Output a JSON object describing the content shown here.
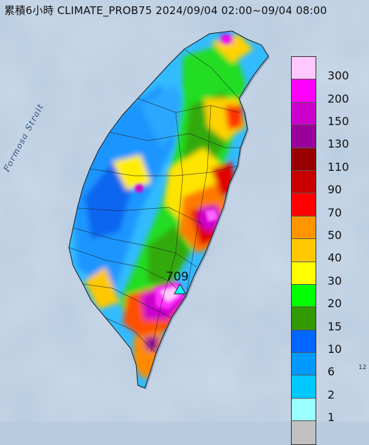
{
  "title": "累積6小時 CLIMATE_PROB75 2024/09/04 02:00~09/04 08:00",
  "strait_label": "Formosa Strait",
  "peak_value": "709",
  "edge_label": "12",
  "legend": [
    {
      "label": "300",
      "color": "#ffc8ff"
    },
    {
      "label": "200",
      "color": "#ff00ff"
    },
    {
      "label": "150",
      "color": "#cc00cc"
    },
    {
      "label": "130",
      "color": "#990099"
    },
    {
      "label": "110",
      "color": "#960000"
    },
    {
      "label": "90",
      "color": "#c80000"
    },
    {
      "label": "70",
      "color": "#ff0000"
    },
    {
      "label": "50",
      "color": "#ff9600"
    },
    {
      "label": "40",
      "color": "#ffc800"
    },
    {
      "label": "30",
      "color": "#ffff00"
    },
    {
      "label": "20",
      "color": "#00ff00"
    },
    {
      "label": "15",
      "color": "#339900"
    },
    {
      "label": "10",
      "color": "#0066ff"
    },
    {
      "label": "6",
      "color": "#0099ff"
    },
    {
      "label": "2",
      "color": "#00c8ff"
    },
    {
      "label": "1",
      "color": "#99ffff"
    },
    {
      "label": "",
      "color": "#c0c0c0"
    }
  ]
}
